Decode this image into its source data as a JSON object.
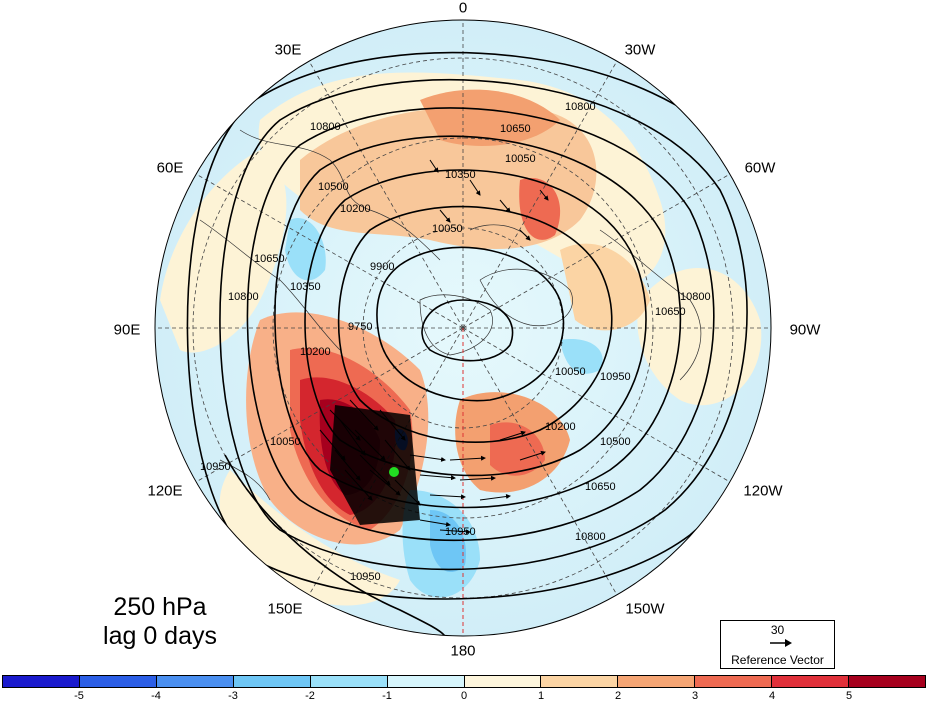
{
  "map": {
    "title_line1": "250 hPa",
    "title_line2": "lag 0 days",
    "projection": "north polar stereographic",
    "longitude_labels": [
      {
        "text": "0",
        "lon": 0
      },
      {
        "text": "30W",
        "lon": -30
      },
      {
        "text": "60W",
        "lon": -60
      },
      {
        "text": "90W",
        "lon": -90
      },
      {
        "text": "120W",
        "lon": -120
      },
      {
        "text": "150W",
        "lon": -150
      },
      {
        "text": "180",
        "lon": 180
      },
      {
        "text": "150E",
        "lon": 150
      },
      {
        "text": "120E",
        "lon": 120
      },
      {
        "text": "90E",
        "lon": 90
      },
      {
        "text": "60E",
        "lon": 60
      },
      {
        "text": "30E",
        "lon": 30
      }
    ],
    "contour_labels": [
      "10800",
      "10650",
      "10500",
      "10350",
      "10200",
      "10050",
      "9900",
      "9750",
      "10950"
    ],
    "colors": {
      "contour": "#000000",
      "background_ocean": "#d3f2fb",
      "anomaly_positive_strong": "#c8102e",
      "anomaly_negative": "#5ac8f5",
      "base_point": "#22dd22"
    }
  },
  "reference_vector": {
    "value": "30",
    "label": "Reference Vector"
  },
  "colorbar": {
    "ticks": [
      "-5",
      "-4",
      "-3",
      "-2",
      "-1",
      "0",
      "1",
      "2",
      "3",
      "4",
      "5"
    ],
    "colors": [
      "#1a1acd",
      "#2b5ee6",
      "#4a8ff0",
      "#6ec6f5",
      "#9ae0f9",
      "#d6f5fc",
      "#fdf5dc",
      "#fbd4a4",
      "#f5a574",
      "#ee6a52",
      "#e0303a",
      "#a6001e"
    ]
  }
}
